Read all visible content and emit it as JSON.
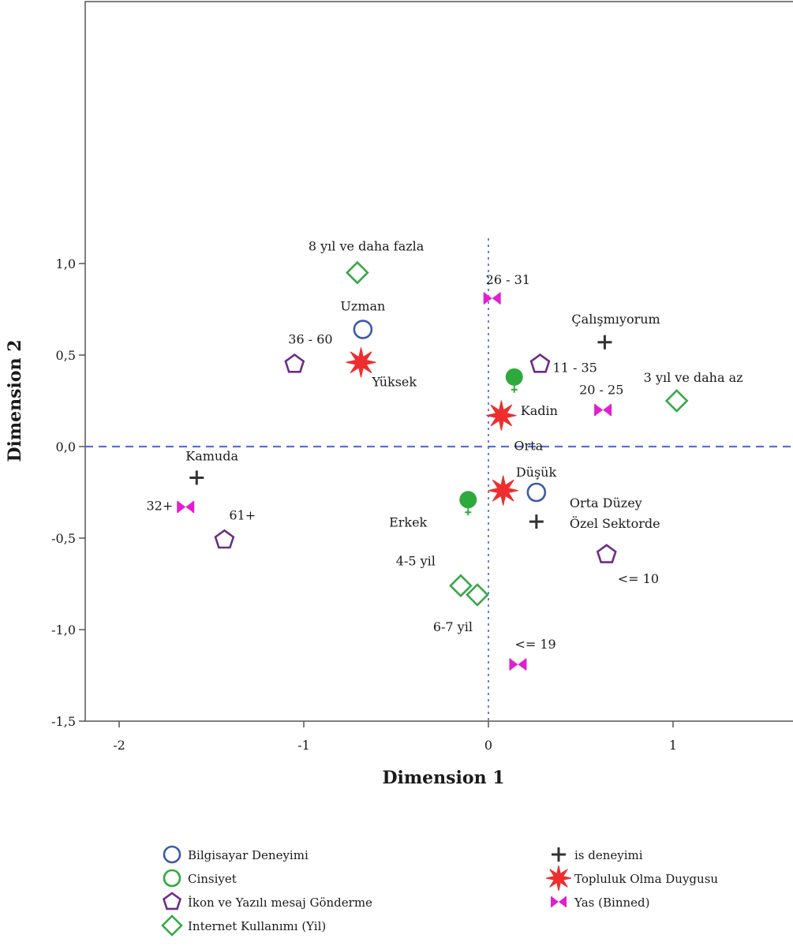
{
  "chart_data": {
    "type": "scatter",
    "title": "",
    "xlabel": "Dimension 1",
    "ylabel": "Dimension 2",
    "xlim": [
      -2.2,
      1.65
    ],
    "ylim": [
      -1.5,
      2.4
    ],
    "x_ticks": [
      "-2",
      "-1",
      "0",
      "1"
    ],
    "x_tick_values": [
      -2,
      -1,
      0,
      1
    ],
    "y_ticks": [
      "1,0",
      "0,5",
      "0,0",
      "-0,5",
      "-1,0",
      "-1,5"
    ],
    "y_tick_values": [
      1.0,
      0.5,
      0.0,
      -0.5,
      -1.0,
      -1.5
    ],
    "grid": false,
    "reference_lines": {
      "x": 0,
      "y": 0
    },
    "legend_position": "bottom",
    "series": [
      {
        "name": "Bilgisayar Deneyimi",
        "marker": "circle-open",
        "color": "#3d5aa8",
        "points": [
          {
            "label": "Uzman",
            "x": -0.68,
            "y": 0.64
          },
          {
            "label": "Düşük",
            "x": 0.26,
            "y": -0.25
          }
        ]
      },
      {
        "name": "Cinsiyet",
        "marker": "gender",
        "color": "#2eaa3c",
        "points": [
          {
            "label": "Kadin",
            "x": 0.14,
            "y": 0.38
          },
          {
            "label": "Erkek",
            "x": -0.11,
            "y": -0.29
          }
        ]
      },
      {
        "name": "İkon ve Yazılı mesaj Gönderme",
        "marker": "pentagon-open",
        "color": "#6e2c8a",
        "points": [
          {
            "label": "36 - 60",
            "x": -1.05,
            "y": 0.45
          },
          {
            "label": "11 - 35",
            "x": 0.28,
            "y": 0.45
          },
          {
            "label": "61+",
            "x": -1.43,
            "y": -0.51
          },
          {
            "label": "<= 10",
            "x": 0.64,
            "y": -0.59
          }
        ]
      },
      {
        "name": "Internet Kullanımı (Yil)",
        "marker": "diamond-open",
        "color": "#3aa84a",
        "points": [
          {
            "label": "8 yıl ve daha fazla",
            "x": -0.71,
            "y": 0.95
          },
          {
            "label": "3 yıl ve daha az",
            "x": 1.02,
            "y": 0.25
          },
          {
            "label": "4-5 yil",
            "x": -0.15,
            "y": -0.76
          },
          {
            "label": "6-7 yil",
            "x": -0.06,
            "y": -0.81
          }
        ]
      },
      {
        "name": "is deneyimi",
        "marker": "plus",
        "color": "#333333",
        "points": [
          {
            "label": "Çalışmıyorum",
            "x": 0.63,
            "y": 0.57
          },
          {
            "label": "Kamuda",
            "x": -1.58,
            "y": -0.17
          },
          {
            "label": "Orta Düzey Özel Sektorde",
            "x": 0.26,
            "y": -0.41
          }
        ]
      },
      {
        "name": "Topluluk Olma Duygusu",
        "marker": "star",
        "color": "#ee2e2e",
        "points": [
          {
            "label": "Yüksek",
            "x": -0.69,
            "y": 0.46
          },
          {
            "label": "Orta",
            "x": 0.07,
            "y": 0.17
          },
          {
            "label": "",
            "x": 0.08,
            "y": -0.24
          }
        ]
      },
      {
        "name": "Yas (Binned)",
        "marker": "bowtie",
        "color": "#e020d0",
        "points": [
          {
            "label": "26 - 31",
            "x": 0.02,
            "y": 0.81
          },
          {
            "label": "20 - 25",
            "x": 0.62,
            "y": 0.2
          },
          {
            "label": "32+",
            "x": -1.64,
            "y": -0.33
          },
          {
            "label": "<= 19",
            "x": 0.16,
            "y": -1.19
          }
        ]
      }
    ]
  }
}
